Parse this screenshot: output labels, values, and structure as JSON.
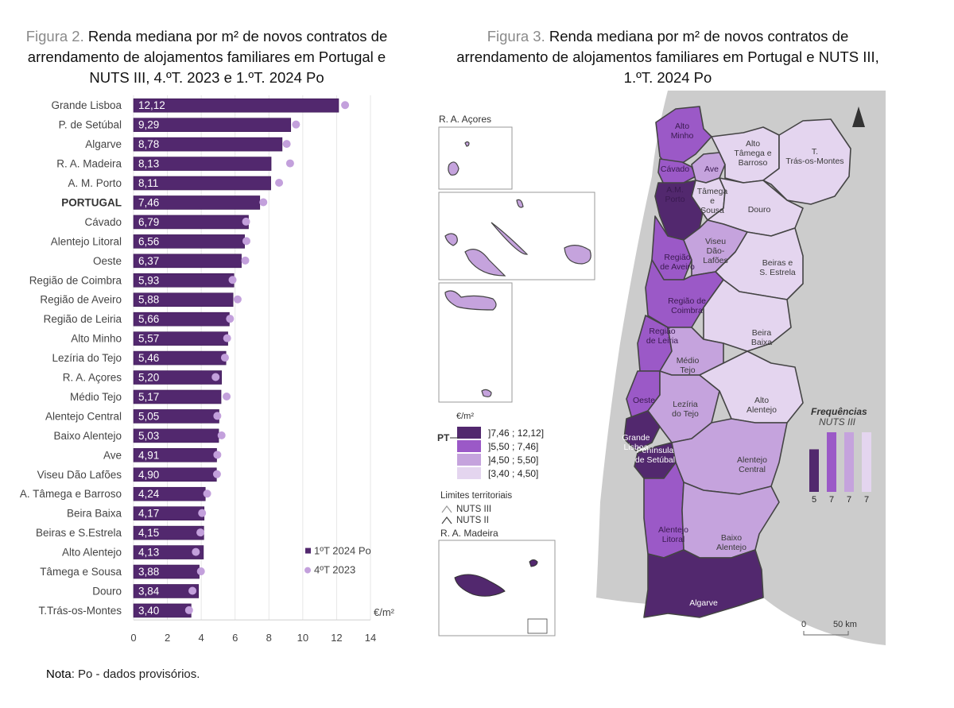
{
  "figure2": {
    "fig_label": "Figura 2.",
    "title_line1": "Renda mediana por m² de novos contratos de",
    "title_line2": "arrendamento de alojamentos familiares em Portugal e",
    "title_line3": "NUTS III, 4.ºT. 2023 e 1.ºT. 2024 Po"
  },
  "figure3": {
    "fig_label": "Figura 3.",
    "title_line1": "Renda mediana por m² de novos contratos de",
    "title_line2": "arrendamento de alojamentos familiares em Portugal e NUTS III,",
    "title_line3": "1.ºT. 2024 Po"
  },
  "note": {
    "label": "Nota",
    "text": ": Po - dados provisórios."
  },
  "chart_data": [
    {
      "type": "bar",
      "orientation": "horizontal",
      "title": "Renda mediana por m² de novos contratos de arrendamento de alojamentos familiares em Portugal e NUTS III, 4.ºT. 2023 e 1.ºT. 2024 Po",
      "xlabel": "€/m²",
      "ylabel": "",
      "xlim": [
        0,
        14
      ],
      "xticks": [
        0,
        2,
        4,
        6,
        8,
        10,
        12,
        14
      ],
      "grid": true,
      "legend_position": "bottom-right",
      "categories": [
        "Grande Lisboa",
        "P. de Setúbal",
        "Algarve",
        "R. A. Madeira",
        "A. M. Porto",
        "PORTUGAL",
        "Cávado",
        "Alentejo Litoral",
        "Oeste",
        "Região de Coimbra",
        "Região de Aveiro",
        "Região de Leiria",
        "Alto Minho",
        "Lezíria do Tejo",
        "R. A. Açores",
        "Médio Tejo",
        "Alentejo Central",
        "Baixo Alentejo",
        "Ave",
        "Viseu Dão Lafões",
        "A. Tâmega e Barroso",
        "Beira Baixa",
        "Beiras e S.Estrela",
        "Alto Alentejo",
        "Tâmega e Sousa",
        "Douro",
        "T.Trás-os-Montes"
      ],
      "bold_category": "PORTUGAL",
      "series": [
        {
          "name": "1ºT 2024 Po",
          "mark": "bar",
          "color": "#52286e",
          "values": [
            12.12,
            9.29,
            8.78,
            8.13,
            8.11,
            7.46,
            6.79,
            6.56,
            6.37,
            5.93,
            5.88,
            5.66,
            5.57,
            5.46,
            5.2,
            5.17,
            5.05,
            5.03,
            4.91,
            4.9,
            4.24,
            4.17,
            4.15,
            4.13,
            3.88,
            3.84,
            3.4
          ],
          "labels": [
            "12,12",
            "9,29",
            "8,78",
            "8,13",
            "8,11",
            "7,46",
            "6,79",
            "6,56",
            "6,37",
            "5,93",
            "5,88",
            "5,66",
            "5,57",
            "5,46",
            "5,20",
            "5,17",
            "5,05",
            "5,03",
            "4,91",
            "4,90",
            "4,24",
            "4,17",
            "4,15",
            "4,13",
            "3,88",
            "3,84",
            "3,40"
          ]
        },
        {
          "name": "4ºT 2023",
          "mark": "dot",
          "color": "#c3a0dc",
          "values": [
            12.5,
            9.6,
            9.05,
            9.25,
            8.6,
            7.67,
            6.65,
            6.67,
            6.6,
            5.85,
            6.15,
            5.7,
            5.53,
            5.4,
            4.85,
            5.5,
            4.95,
            5.2,
            4.95,
            4.93,
            4.35,
            4.05,
            3.95,
            3.68,
            3.98,
            3.48,
            3.28
          ]
        }
      ]
    },
    {
      "type": "map",
      "title": "Renda mediana por m² de novos contratos de arrendamento de alojamentos familiares em Portugal e NUTS III, 1.ºT. 2024 Po",
      "unit": "€/m²",
      "classes": [
        {
          "label": "]7,46 ; 12,12]",
          "color": "#52286e",
          "frequency": 5
        },
        {
          "label": "]5,50 ; 7,46]",
          "color": "#9b59c7",
          "frequency": 7
        },
        {
          "label": "]4,50 ; 5,50]",
          "color": "#c5a3dd",
          "frequency": 7
        },
        {
          "label": "[3,40 ; 4,50]",
          "color": "#e4d5ef",
          "frequency": 7
        }
      ],
      "pt_marker": "PT",
      "frequency_title": "Frequências",
      "frequency_subtitle": "NUTS III",
      "boundaries_title": "Limites territoriais",
      "boundaries": [
        "NUTS III",
        "NUTS II"
      ],
      "inset_titles": [
        "R. A. Açores",
        "R. A. Madeira"
      ],
      "scale": {
        "start": "0",
        "end": "50 km"
      },
      "regions": [
        {
          "name": "Alto Minho",
          "class": 1
        },
        {
          "name": "Cávado",
          "class": 1
        },
        {
          "name": "Ave",
          "class": 2
        },
        {
          "name": "Alto Tâmega e Barroso",
          "class": 3
        },
        {
          "name": "T. Trás-os-Montes",
          "class": 3
        },
        {
          "name": "A.M. Porto",
          "class": 0
        },
        {
          "name": "Tâmega e Sousa",
          "class": 3
        },
        {
          "name": "Douro",
          "class": 3
        },
        {
          "name": "Região de Aveiro",
          "class": 1
        },
        {
          "name": "Viseu Dão-Lafões",
          "class": 2
        },
        {
          "name": "Beiras e S. Estrela",
          "class": 3
        },
        {
          "name": "Região de Coimbra",
          "class": 1
        },
        {
          "name": "Região de Leiria",
          "class": 1
        },
        {
          "name": "Beira Baixa",
          "class": 3
        },
        {
          "name": "Médio Tejo",
          "class": 2
        },
        {
          "name": "Oeste",
          "class": 1
        },
        {
          "name": "Lezíria do Tejo",
          "class": 2
        },
        {
          "name": "Alto Alentejo",
          "class": 3
        },
        {
          "name": "Grande Lisboa",
          "class": 0
        },
        {
          "name": "Península de Setúbal",
          "class": 0
        },
        {
          "name": "Alentejo Central",
          "class": 2
        },
        {
          "name": "Alentejo Litoral",
          "class": 1
        },
        {
          "name": "Baixo Alentejo",
          "class": 2
        },
        {
          "name": "Algarve",
          "class": 0
        },
        {
          "name": "R. A. Açores",
          "class": 2
        },
        {
          "name": "R. A. Madeira",
          "class": 0
        }
      ]
    }
  ],
  "map_labels": {
    "alto_minho": [
      "Alto",
      "Minho"
    ],
    "cavado": [
      "Cávado"
    ],
    "ave": [
      "Ave"
    ],
    "atb": [
      "Alto",
      "Tâmega e",
      "Barroso"
    ],
    "ttm": [
      "T.",
      "Trás-os-Montes"
    ],
    "amp": [
      "A.M.",
      "Porto"
    ],
    "ts": [
      "Tâmega",
      "e",
      "Sousa"
    ],
    "douro": [
      "Douro"
    ],
    "aveiro": [
      "Região",
      "de Aveiro"
    ],
    "viseu": [
      "Viseu",
      "Dão-",
      "Lafões"
    ],
    "beiras": [
      "Beiras e",
      "S. Estrela"
    ],
    "coimbra": [
      "Região de",
      "Coimbra"
    ],
    "leiria": [
      "Região",
      "de Leiria"
    ],
    "bb": [
      "Beira",
      "Baixa"
    ],
    "mt": [
      "Médio",
      "Tejo"
    ],
    "oeste": [
      "Oeste"
    ],
    "lezir": [
      "Lezíria",
      "do Tejo"
    ],
    "aa": [
      "Alto",
      "Alentejo"
    ],
    "gl": [
      "Grande",
      "Lisboa"
    ],
    "ps": [
      "Península",
      "de Setúbal"
    ],
    "ac": [
      "Alentejo",
      "Central"
    ],
    "al": [
      "Alentejo",
      "Litoral"
    ],
    "ba": [
      "Baixo",
      "Alentejo"
    ],
    "alg": [
      "Algarve"
    ]
  }
}
